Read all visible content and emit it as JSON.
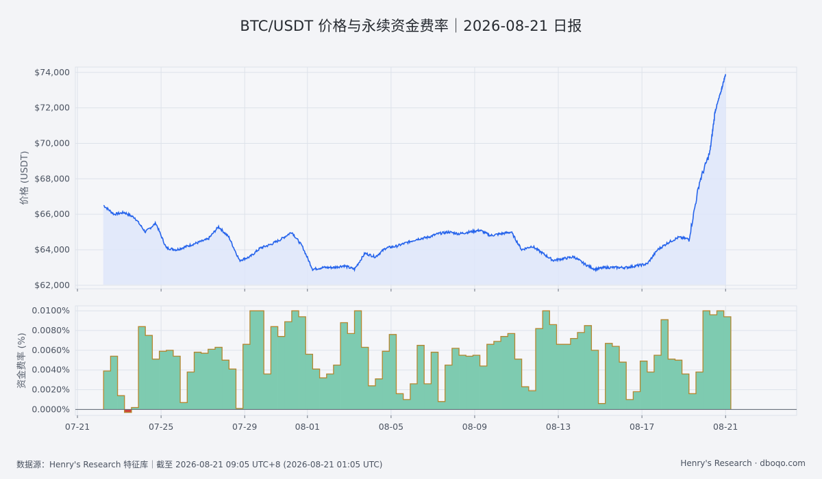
{
  "title": "BTC/USDT 价格与永续资金费率｜2026-08-21 日报",
  "footer": {
    "source": "数据源：Henry's Research 特征库｜截至 2026-08-21 09:05 UTC+8 (2026-08-21 01:05 UTC)",
    "brand": "Henry's Research · dboqo.com"
  },
  "colors": {
    "price_line": "#2563eb",
    "price_fill": "#dfe7fb",
    "funding_fill": "#7ecbb0",
    "funding_stroke": "#b4862e",
    "funding_negative": "#d0453d",
    "grid": "#dde2ea",
    "panel_bg": "#f5f6f9"
  },
  "chart_data": [
    {
      "type": "line",
      "ylabel": "价格 (USDT)",
      "ylim": [
        61800,
        74300
      ],
      "yticks": [
        62000,
        64000,
        66000,
        68000,
        70000,
        72000,
        74000
      ],
      "ytick_labels": [
        "$62,000",
        "$64,000",
        "$66,000",
        "$68,000",
        "$70,000",
        "$72,000",
        "$74,000"
      ],
      "grid": true,
      "series": [
        {
          "x": [
            "07-22 06:00",
            "07-22 18:00",
            "07-23 06:00",
            "07-23 18:00",
            "07-24 06:00",
            "07-24 18:00",
            "07-25 06:00",
            "07-25 18:00",
            "07-26 06:00",
            "07-26 18:00",
            "07-27 06:00",
            "07-27 18:00",
            "07-28 06:00",
            "07-28 18:00",
            "07-29 06:00",
            "07-29 18:00",
            "07-30 06:00",
            "07-30 18:00",
            "07-31 06:00",
            "07-31 18:00",
            "08-01 06:00",
            "08-01 18:00",
            "08-02 06:00",
            "08-02 18:00",
            "08-03 06:00",
            "08-03 18:00",
            "08-04 06:00",
            "08-04 18:00",
            "08-05 06:00",
            "08-05 18:00",
            "08-06 06:00",
            "08-06 18:00",
            "08-07 06:00",
            "08-07 18:00",
            "08-08 06:00",
            "08-08 18:00",
            "08-09 06:00",
            "08-09 18:00",
            "08-10 06:00",
            "08-10 18:00",
            "08-11 06:00",
            "08-11 18:00",
            "08-12 06:00",
            "08-12 18:00",
            "08-13 06:00",
            "08-13 18:00",
            "08-14 06:00",
            "08-14 18:00",
            "08-15 06:00",
            "08-15 18:00",
            "08-16 06:00",
            "08-16 18:00",
            "08-17 06:00",
            "08-17 18:00",
            "08-18 06:00",
            "08-18 18:00",
            "08-19 06:00",
            "08-19 18:00",
            "08-20 06:00",
            "08-20 12:00",
            "08-20 18:00",
            "08-21 00:00"
          ],
          "values": [
            66500,
            66000,
            66100,
            65800,
            65000,
            65500,
            64100,
            64000,
            64200,
            64400,
            64600,
            65300,
            64700,
            63400,
            63600,
            64100,
            64300,
            64600,
            65000,
            64200,
            62900,
            63000,
            63000,
            63100,
            62900,
            63800,
            63600,
            64100,
            64200,
            64400,
            64600,
            64700,
            64900,
            65000,
            64900,
            65000,
            65100,
            64800,
            64900,
            65000,
            64000,
            64200,
            63800,
            63400,
            63500,
            63600,
            63200,
            62900,
            63000,
            63000,
            63000,
            63100,
            63200,
            64000,
            64400,
            64700,
            64600,
            67800,
            69500,
            71800,
            72800,
            73900
          ]
        }
      ]
    },
    {
      "type": "area",
      "ylabel": "资金费率 (%)",
      "ylim": [
        -0.0006,
        0.0105
      ],
      "yticks": [
        0.0,
        0.002,
        0.004,
        0.006,
        0.008,
        0.01
      ],
      "ytick_labels": [
        "0.0000%",
        "0.0020%",
        "0.0040%",
        "0.0060%",
        "0.0080%",
        "0.0100%"
      ],
      "grid": true,
      "series": [
        {
          "x": [
            "07-22 06:00",
            "07-22 14:00",
            "07-22 22:00",
            "07-23 06:00",
            "07-23 14:00",
            "07-23 22:00",
            "07-24 06:00",
            "07-24 14:00",
            "07-24 22:00",
            "07-25 06:00",
            "07-25 14:00",
            "07-25 22:00",
            "07-26 06:00",
            "07-26 14:00",
            "07-26 22:00",
            "07-27 06:00",
            "07-27 14:00",
            "07-27 22:00",
            "07-28 06:00",
            "07-28 14:00",
            "07-28 22:00",
            "07-29 06:00",
            "07-29 14:00",
            "07-29 22:00",
            "07-30 06:00",
            "07-30 14:00",
            "07-30 22:00",
            "07-31 06:00",
            "07-31 14:00",
            "07-31 22:00",
            "08-01 06:00",
            "08-01 14:00",
            "08-01 22:00",
            "08-02 06:00",
            "08-02 14:00",
            "08-02 22:00",
            "08-03 06:00",
            "08-03 14:00",
            "08-03 22:00",
            "08-04 06:00",
            "08-04 14:00",
            "08-04 22:00",
            "08-05 06:00",
            "08-05 14:00",
            "08-05 22:00",
            "08-06 06:00",
            "08-06 14:00",
            "08-06 22:00",
            "08-07 06:00",
            "08-07 14:00",
            "08-07 22:00",
            "08-08 06:00",
            "08-08 14:00",
            "08-08 22:00",
            "08-09 06:00",
            "08-09 14:00",
            "08-09 22:00",
            "08-10 06:00",
            "08-10 14:00",
            "08-10 22:00",
            "08-11 06:00",
            "08-11 14:00",
            "08-11 22:00",
            "08-12 06:00",
            "08-12 14:00",
            "08-12 22:00",
            "08-13 06:00",
            "08-13 14:00",
            "08-13 22:00",
            "08-14 06:00",
            "08-14 14:00",
            "08-14 22:00",
            "08-15 06:00",
            "08-15 14:00",
            "08-15 22:00",
            "08-16 06:00",
            "08-16 14:00",
            "08-16 22:00",
            "08-17 06:00",
            "08-17 14:00",
            "08-17 22:00",
            "08-18 06:00",
            "08-18 14:00",
            "08-18 22:00",
            "08-19 06:00",
            "08-19 14:00",
            "08-19 22:00",
            "08-20 06:00",
            "08-20 14:00",
            "08-20 22:00"
          ],
          "values": [
            0.0039,
            0.0054,
            0.0014,
            -0.0003,
            0.0002,
            0.0084,
            0.0075,
            0.0051,
            0.0059,
            0.006,
            0.0054,
            0.0007,
            0.0038,
            0.0058,
            0.0057,
            0.0061,
            0.0063,
            0.005,
            0.0041,
            0.0001,
            0.0066,
            0.01,
            0.01,
            0.0036,
            0.0084,
            0.0074,
            0.0089,
            0.01,
            0.0094,
            0.0056,
            0.0041,
            0.0032,
            0.0036,
            0.0045,
            0.0088,
            0.0077,
            0.01,
            0.0063,
            0.0024,
            0.0031,
            0.0059,
            0.0076,
            0.0016,
            0.001,
            0.0026,
            0.0065,
            0.0026,
            0.0058,
            0.0008,
            0.0045,
            0.0062,
            0.0055,
            0.0054,
            0.0055,
            0.0044,
            0.0066,
            0.0069,
            0.0074,
            0.0077,
            0.0051,
            0.0023,
            0.0019,
            0.0082,
            0.01,
            0.0086,
            0.0066,
            0.0066,
            0.0072,
            0.0078,
            0.0085,
            0.006,
            0.0006,
            0.0067,
            0.0064,
            0.0048,
            0.001,
            0.0018,
            0.0049,
            0.0038,
            0.0055,
            0.0091,
            0.0051,
            0.005,
            0.0036,
            0.0016,
            0.0038,
            0.01,
            0.0096,
            0.01,
            0.0094
          ]
        }
      ]
    }
  ],
  "x_axis": {
    "ticks": [
      "07-21",
      "07-25",
      "07-29",
      "08-01",
      "08-05",
      "08-09",
      "08-13",
      "08-17",
      "08-21"
    ]
  }
}
